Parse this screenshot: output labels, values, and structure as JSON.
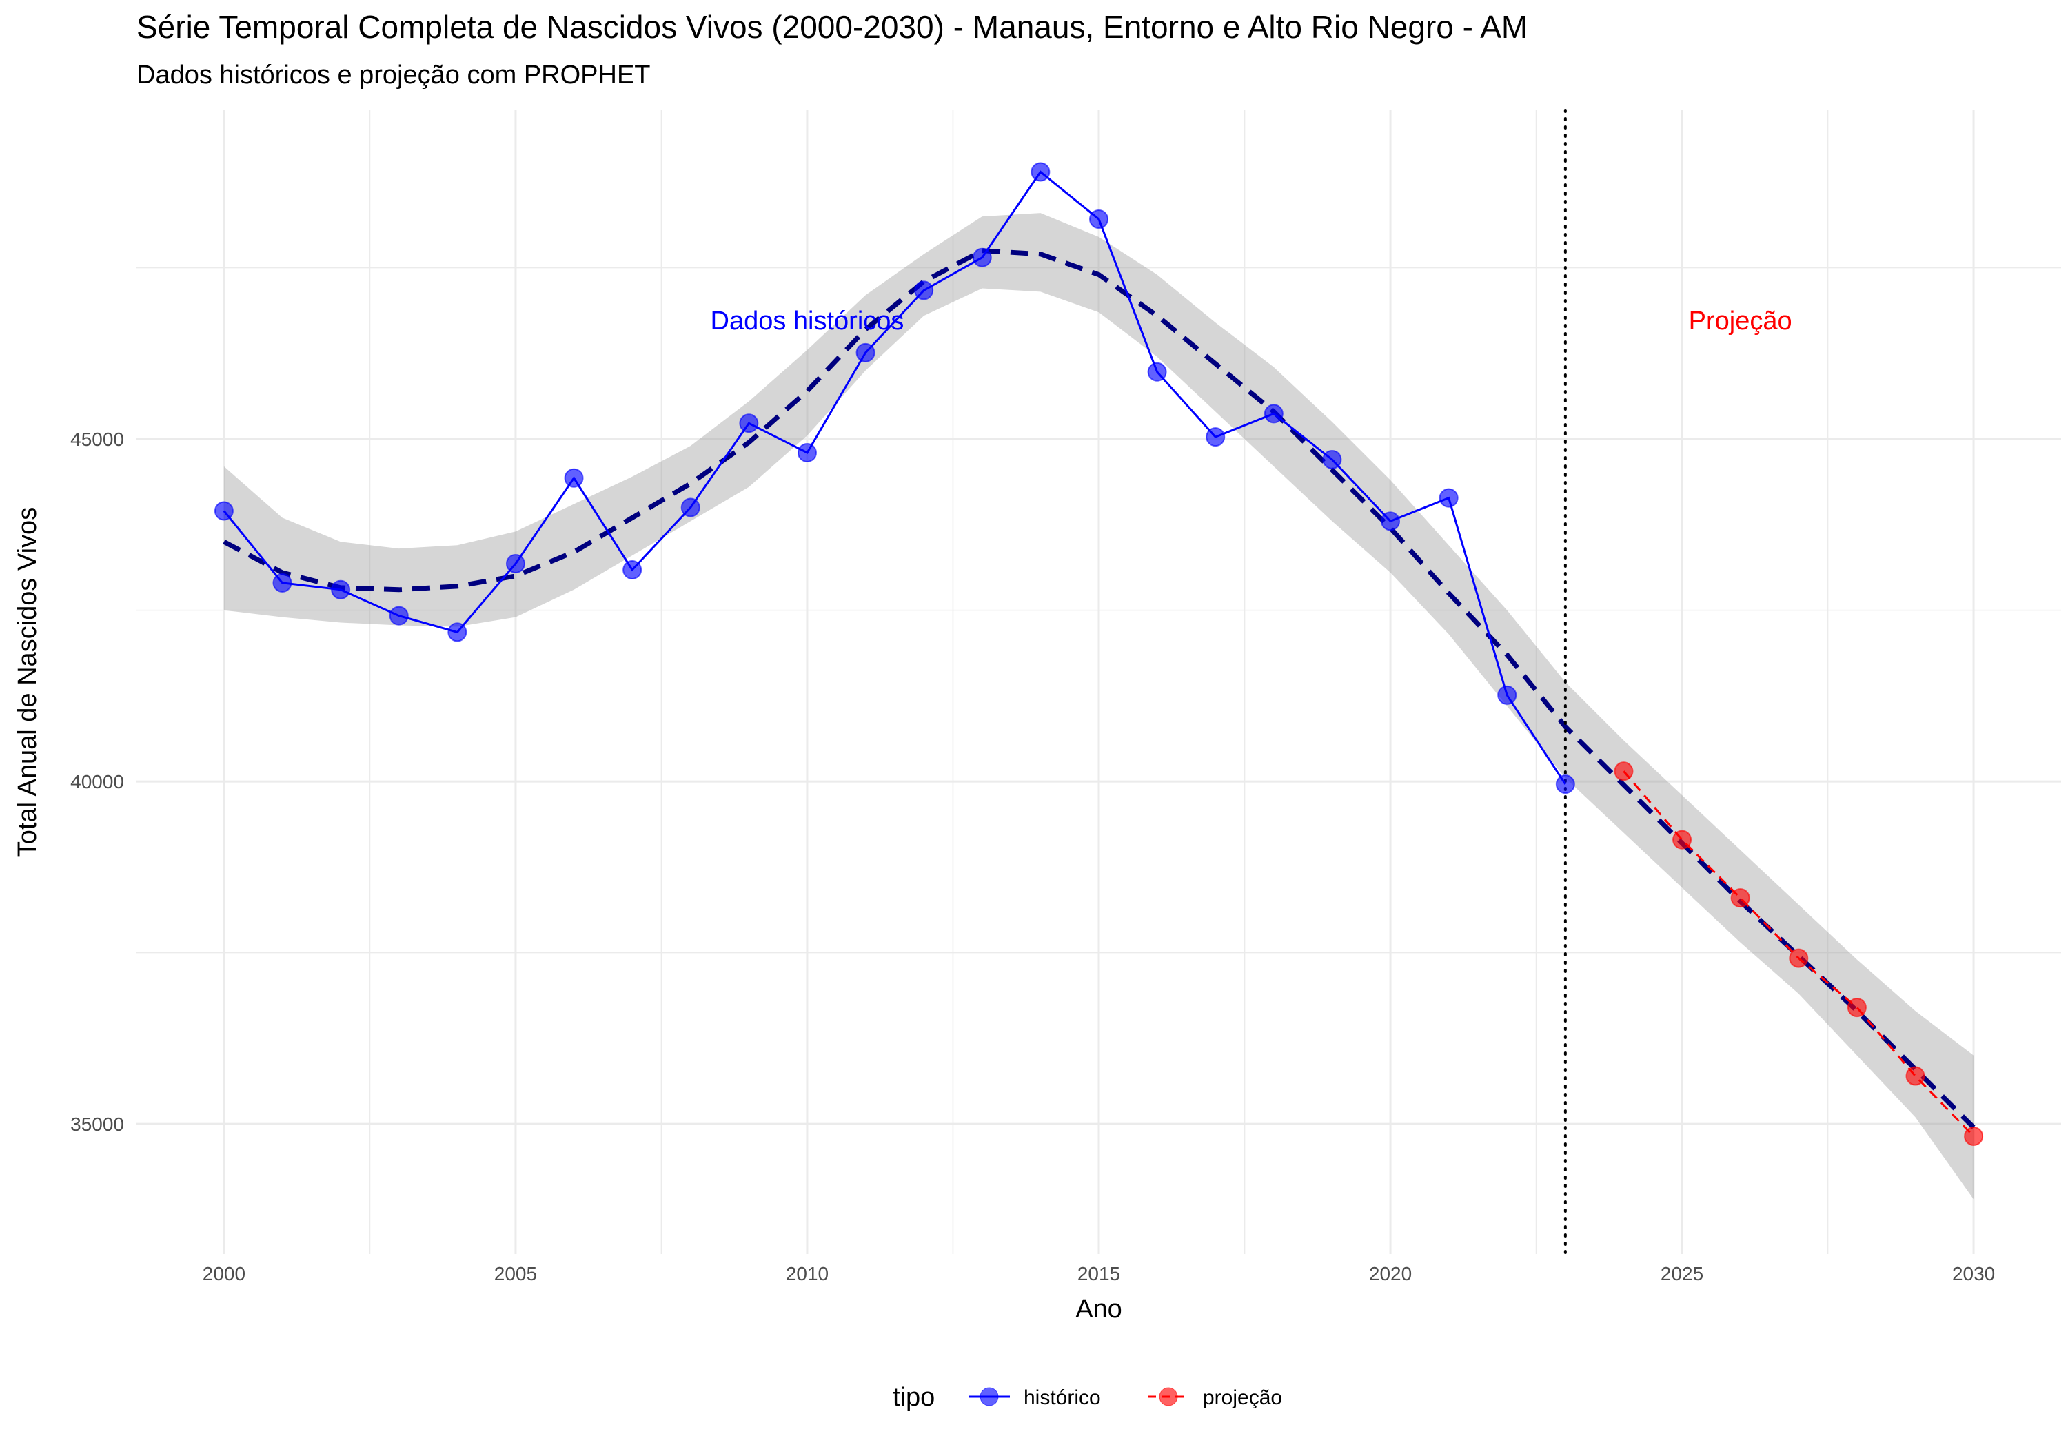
{
  "title": "Série Temporal Completa de Nascidos Vivos (2000-2030) -  Manaus, Entorno e Alto Rio Negro - AM",
  "subtitle": "Dados históricos e projeção com PROPHET",
  "chart_data": {
    "type": "line",
    "xlabel": "Ano",
    "ylabel": "Total Anual de Nascidos Vivos",
    "xlim": [
      1998.5,
      2031.5
    ],
    "ylim": [
      33100,
      49800
    ],
    "x_ticks": [
      2000,
      2005,
      2010,
      2015,
      2020,
      2025,
      2030
    ],
    "y_ticks": [
      35000,
      40000,
      45000
    ],
    "grid": true,
    "legend": {
      "title": "tipo",
      "position": "bottom",
      "entries": [
        {
          "label": "histórico",
          "color": "#0000ff"
        },
        {
          "label": "projeção",
          "color": "#ff0000"
        }
      ]
    },
    "series": [
      {
        "name": "histórico",
        "color": "#0000ff",
        "x": [
          2000,
          2001,
          2002,
          2003,
          2004,
          2005,
          2006,
          2007,
          2008,
          2009,
          2010,
          2011,
          2012,
          2013,
          2014,
          2015,
          2016,
          2017,
          2018,
          2019,
          2020,
          2021,
          2022,
          2023
        ],
        "y": [
          43950,
          42900,
          42800,
          42420,
          42180,
          43180,
          44430,
          43090,
          44000,
          45230,
          44800,
          46260,
          47170,
          47650,
          48900,
          48210,
          45980,
          45030,
          45370,
          44700,
          43800,
          44140,
          41260,
          39960
        ]
      },
      {
        "name": "projeção",
        "color": "#ff0000",
        "x": [
          2024,
          2025,
          2026,
          2027,
          2028,
          2029,
          2030
        ],
        "y": [
          40150,
          39150,
          38300,
          37420,
          36700,
          35700,
          34820
        ]
      }
    ],
    "trend": {
      "color": "#00007f",
      "x": [
        2000,
        2001,
        2002,
        2003,
        2004,
        2005,
        2006,
        2007,
        2008,
        2009,
        2010,
        2011,
        2012,
        2013,
        2014,
        2015,
        2016,
        2017,
        2018,
        2019,
        2020,
        2021,
        2022,
        2023,
        2024,
        2025,
        2026,
        2027,
        2028,
        2029,
        2030
      ],
      "y": [
        43500,
        43050,
        42830,
        42800,
        42850,
        43000,
        43350,
        43850,
        44350,
        44950,
        45700,
        46600,
        47300,
        47750,
        47700,
        47400,
        46800,
        46100,
        45400,
        44550,
        43700,
        42750,
        41850,
        40800,
        39950,
        39100,
        38250,
        37450,
        36650,
        35800,
        34950
      ],
      "lower": [
        42500,
        42400,
        42320,
        42280,
        42260,
        42400,
        42800,
        43300,
        43800,
        44300,
        45050,
        46000,
        46800,
        47200,
        47150,
        46850,
        46200,
        45400,
        44600,
        43800,
        43050,
        42150,
        41100,
        40050,
        39250,
        38450,
        37650,
        36900,
        36000,
        35100,
        33900
      ],
      "upper": [
        44600,
        43850,
        43500,
        43400,
        43450,
        43650,
        44050,
        44450,
        44900,
        45550,
        46300,
        47100,
        47700,
        48250,
        48300,
        47950,
        47400,
        46700,
        46050,
        45250,
        44400,
        43450,
        42500,
        41450,
        40600,
        39800,
        39000,
        38200,
        37400,
        36650,
        36000
      ]
    },
    "annotations": [
      {
        "text": "Dados históricos",
        "x": 2010,
        "y": 46600,
        "color": "#0000ff"
      },
      {
        "text": "Projeção",
        "x": 2026,
        "y": 46600,
        "color": "#ff0000"
      }
    ],
    "vline": {
      "x": 2023,
      "style": "dotted"
    }
  }
}
